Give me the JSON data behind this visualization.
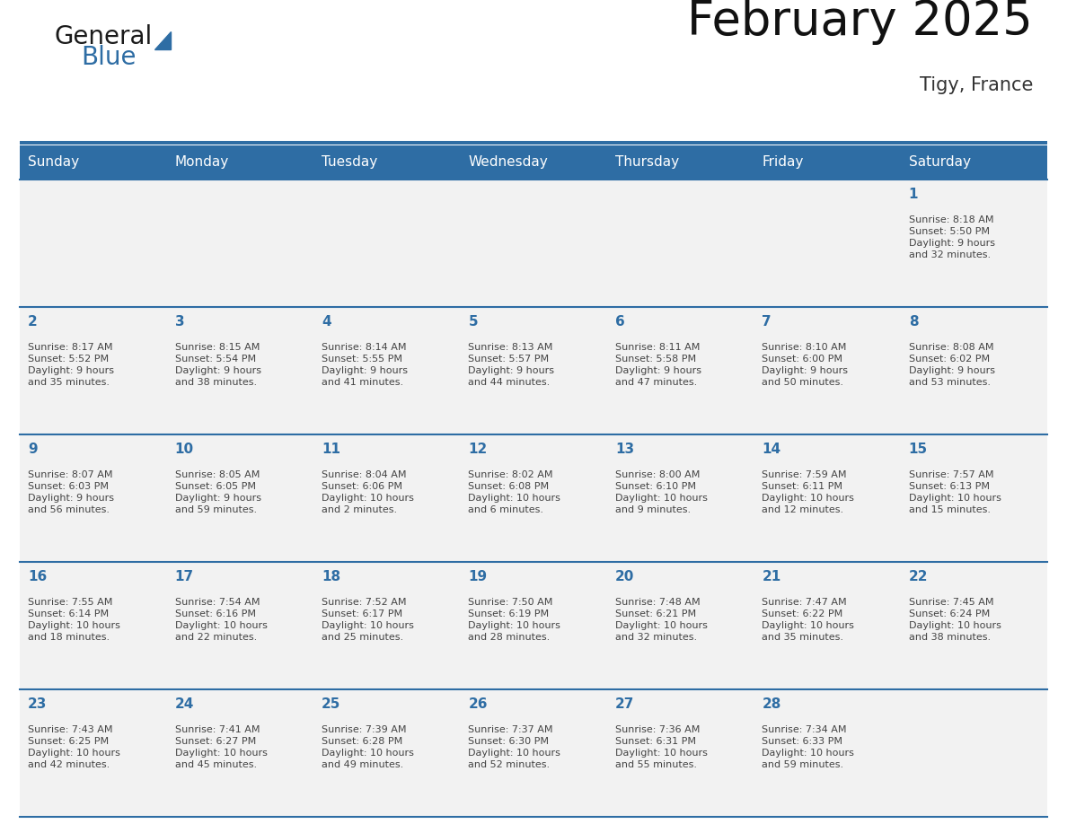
{
  "title": "February 2025",
  "subtitle": "Tigy, France",
  "header_bg": "#2E6DA4",
  "header_text_color": "#FFFFFF",
  "cell_bg": "#F2F2F2",
  "day_number_color": "#2E6DA4",
  "cell_text_color": "#444444",
  "line_color": "#2E6DA4",
  "days_of_week": [
    "Sunday",
    "Monday",
    "Tuesday",
    "Wednesday",
    "Thursday",
    "Friday",
    "Saturday"
  ],
  "weeks": [
    [
      {
        "day": null,
        "text": ""
      },
      {
        "day": null,
        "text": ""
      },
      {
        "day": null,
        "text": ""
      },
      {
        "day": null,
        "text": ""
      },
      {
        "day": null,
        "text": ""
      },
      {
        "day": null,
        "text": ""
      },
      {
        "day": 1,
        "text": "Sunrise: 8:18 AM\nSunset: 5:50 PM\nDaylight: 9 hours\nand 32 minutes."
      }
    ],
    [
      {
        "day": 2,
        "text": "Sunrise: 8:17 AM\nSunset: 5:52 PM\nDaylight: 9 hours\nand 35 minutes."
      },
      {
        "day": 3,
        "text": "Sunrise: 8:15 AM\nSunset: 5:54 PM\nDaylight: 9 hours\nand 38 minutes."
      },
      {
        "day": 4,
        "text": "Sunrise: 8:14 AM\nSunset: 5:55 PM\nDaylight: 9 hours\nand 41 minutes."
      },
      {
        "day": 5,
        "text": "Sunrise: 8:13 AM\nSunset: 5:57 PM\nDaylight: 9 hours\nand 44 minutes."
      },
      {
        "day": 6,
        "text": "Sunrise: 8:11 AM\nSunset: 5:58 PM\nDaylight: 9 hours\nand 47 minutes."
      },
      {
        "day": 7,
        "text": "Sunrise: 8:10 AM\nSunset: 6:00 PM\nDaylight: 9 hours\nand 50 minutes."
      },
      {
        "day": 8,
        "text": "Sunrise: 8:08 AM\nSunset: 6:02 PM\nDaylight: 9 hours\nand 53 minutes."
      }
    ],
    [
      {
        "day": 9,
        "text": "Sunrise: 8:07 AM\nSunset: 6:03 PM\nDaylight: 9 hours\nand 56 minutes."
      },
      {
        "day": 10,
        "text": "Sunrise: 8:05 AM\nSunset: 6:05 PM\nDaylight: 9 hours\nand 59 minutes."
      },
      {
        "day": 11,
        "text": "Sunrise: 8:04 AM\nSunset: 6:06 PM\nDaylight: 10 hours\nand 2 minutes."
      },
      {
        "day": 12,
        "text": "Sunrise: 8:02 AM\nSunset: 6:08 PM\nDaylight: 10 hours\nand 6 minutes."
      },
      {
        "day": 13,
        "text": "Sunrise: 8:00 AM\nSunset: 6:10 PM\nDaylight: 10 hours\nand 9 minutes."
      },
      {
        "day": 14,
        "text": "Sunrise: 7:59 AM\nSunset: 6:11 PM\nDaylight: 10 hours\nand 12 minutes."
      },
      {
        "day": 15,
        "text": "Sunrise: 7:57 AM\nSunset: 6:13 PM\nDaylight: 10 hours\nand 15 minutes."
      }
    ],
    [
      {
        "day": 16,
        "text": "Sunrise: 7:55 AM\nSunset: 6:14 PM\nDaylight: 10 hours\nand 18 minutes."
      },
      {
        "day": 17,
        "text": "Sunrise: 7:54 AM\nSunset: 6:16 PM\nDaylight: 10 hours\nand 22 minutes."
      },
      {
        "day": 18,
        "text": "Sunrise: 7:52 AM\nSunset: 6:17 PM\nDaylight: 10 hours\nand 25 minutes."
      },
      {
        "day": 19,
        "text": "Sunrise: 7:50 AM\nSunset: 6:19 PM\nDaylight: 10 hours\nand 28 minutes."
      },
      {
        "day": 20,
        "text": "Sunrise: 7:48 AM\nSunset: 6:21 PM\nDaylight: 10 hours\nand 32 minutes."
      },
      {
        "day": 21,
        "text": "Sunrise: 7:47 AM\nSunset: 6:22 PM\nDaylight: 10 hours\nand 35 minutes."
      },
      {
        "day": 22,
        "text": "Sunrise: 7:45 AM\nSunset: 6:24 PM\nDaylight: 10 hours\nand 38 minutes."
      }
    ],
    [
      {
        "day": 23,
        "text": "Sunrise: 7:43 AM\nSunset: 6:25 PM\nDaylight: 10 hours\nand 42 minutes."
      },
      {
        "day": 24,
        "text": "Sunrise: 7:41 AM\nSunset: 6:27 PM\nDaylight: 10 hours\nand 45 minutes."
      },
      {
        "day": 25,
        "text": "Sunrise: 7:39 AM\nSunset: 6:28 PM\nDaylight: 10 hours\nand 49 minutes."
      },
      {
        "day": 26,
        "text": "Sunrise: 7:37 AM\nSunset: 6:30 PM\nDaylight: 10 hours\nand 52 minutes."
      },
      {
        "day": 27,
        "text": "Sunrise: 7:36 AM\nSunset: 6:31 PM\nDaylight: 10 hours\nand 55 minutes."
      },
      {
        "day": 28,
        "text": "Sunrise: 7:34 AM\nSunset: 6:33 PM\nDaylight: 10 hours\nand 59 minutes."
      },
      {
        "day": null,
        "text": ""
      }
    ]
  ],
  "logo_general_color": "#1a1a1a",
  "logo_blue_color": "#2E6DA4",
  "logo_triangle_color": "#2E6DA4",
  "title_fontsize": 38,
  "subtitle_fontsize": 15,
  "header_fontsize": 11,
  "day_num_fontsize": 11,
  "cell_text_fontsize": 8.0
}
